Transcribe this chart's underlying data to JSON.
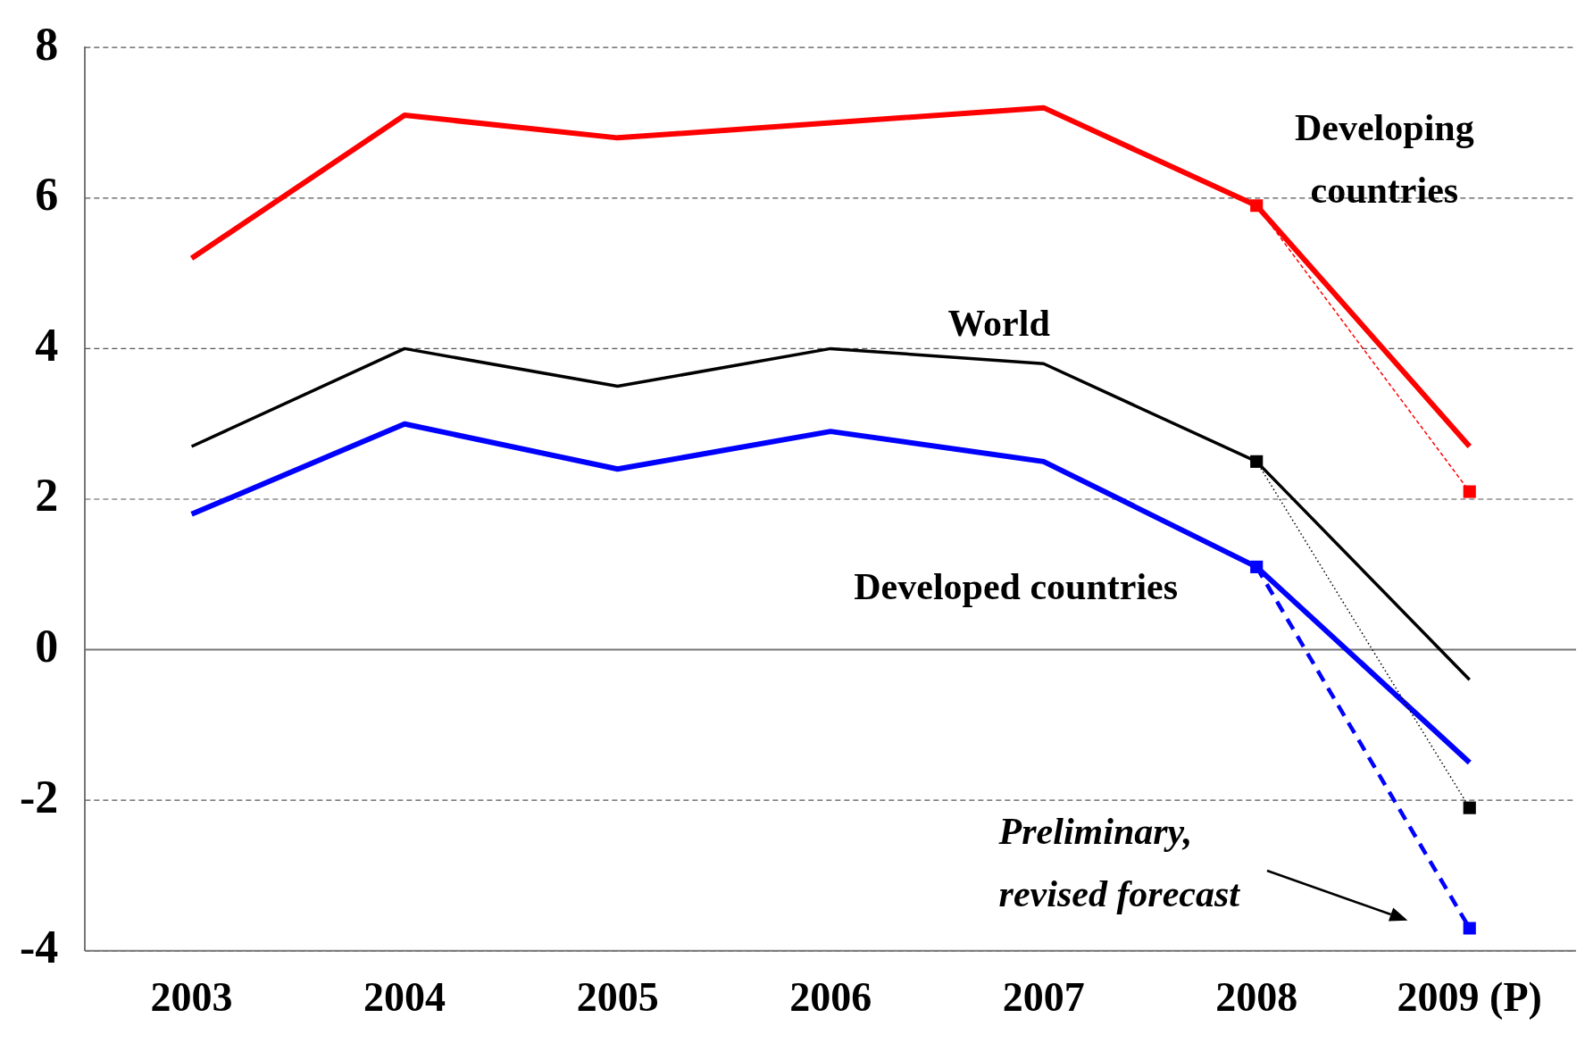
{
  "chart_data": {
    "type": "line",
    "categories": [
      "2003",
      "2004",
      "2005",
      "2006",
      "2007",
      "2008",
      "2009 (P)"
    ],
    "ylim": [
      -4,
      8
    ],
    "yticks": [
      -4,
      -2,
      0,
      2,
      4,
      6,
      8
    ],
    "grid": "y",
    "legend": false,
    "marker": "none",
    "line_style": "solid",
    "series": [
      {
        "name": "Developing countries",
        "color": "#ff0000",
        "values": [
          5.2,
          7.1,
          6.8,
          7.0,
          7.2,
          5.9,
          2.7
        ]
      },
      {
        "name": "World",
        "color": "#000000",
        "values": [
          2.7,
          4.0,
          3.5,
          4.0,
          3.8,
          2.5,
          -0.4
        ]
      },
      {
        "name": "Developed countries",
        "color": "#0000ff",
        "values": [
          1.8,
          3.0,
          2.4,
          2.9,
          2.5,
          1.1,
          -1.5
        ]
      },
      {
        "color": "#ff0000",
        "values": [
          null,
          null,
          null,
          null,
          null,
          5.9,
          2.1
        ],
        "marker": "square",
        "line_style": "dashed"
      },
      {
        "color": "#000000",
        "values": [
          null,
          null,
          null,
          null,
          null,
          2.5,
          -2.1
        ],
        "marker": "square",
        "line_style": "dotted"
      },
      {
        "color": "#0000ff",
        "values": [
          null,
          null,
          null,
          null,
          null,
          1.1,
          -3.7
        ],
        "marker": "square",
        "line_style": "dashed"
      }
    ],
    "annotations": [
      "Preliminary, revised forecast"
    ]
  }
}
